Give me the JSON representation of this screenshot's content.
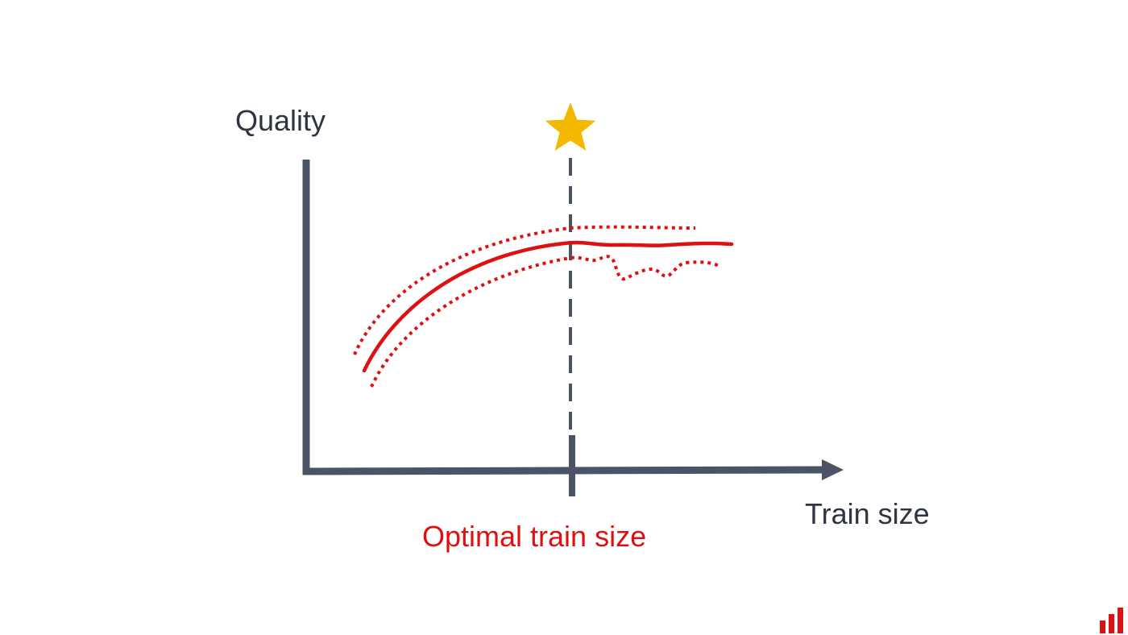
{
  "diagram": {
    "y_axis_label": "Quality",
    "x_axis_label": "Train size",
    "marker_label": "Optimal train size",
    "colors": {
      "axis": "#4a5466",
      "curve": "#dd1111",
      "star": "#f5b800",
      "label_text": "#2f3442",
      "accent_text": "#dd1111"
    },
    "icons": {
      "marker": "star-icon",
      "brand": "bar-chart-logo-icon"
    }
  }
}
